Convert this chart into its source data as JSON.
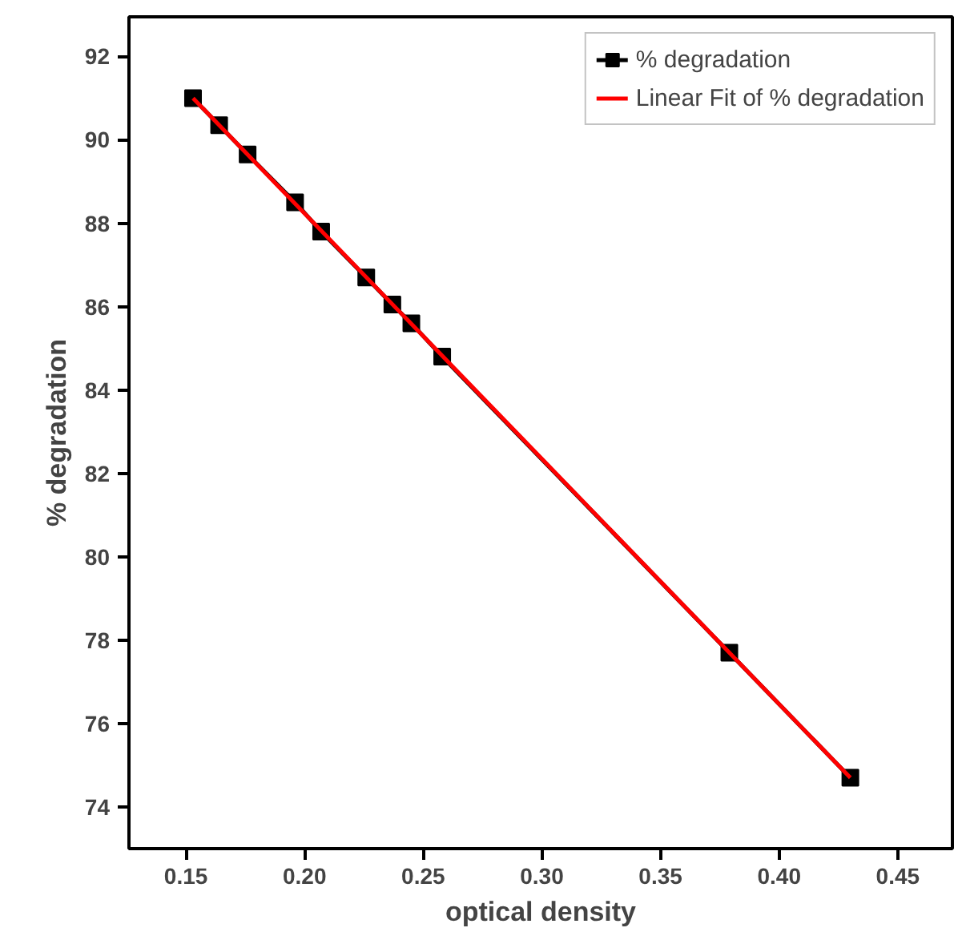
{
  "chart_data": {
    "type": "line",
    "xlabel": "optical density",
    "ylabel": "% degradation",
    "x": [
      0.153,
      0.164,
      0.176,
      0.196,
      0.207,
      0.226,
      0.237,
      0.245,
      0.258,
      0.379,
      0.43
    ],
    "series": [
      {
        "name": "% degradation",
        "color": "#000000",
        "marker": "square",
        "values": [
          91.0,
          90.35,
          89.65,
          88.5,
          87.8,
          86.7,
          86.05,
          85.6,
          84.8,
          77.7,
          74.7
        ]
      },
      {
        "name": "Linear Fit of % degradation",
        "color": "#ff0000",
        "marker": "none",
        "x": [
          0.153,
          0.43
        ],
        "values": [
          91.0,
          74.7
        ]
      }
    ],
    "xlim": [
      0.126,
      0.473
    ],
    "ylim": [
      73.0,
      92.95
    ],
    "xticks": [
      {
        "value": 0.15,
        "label": "0.15"
      },
      {
        "value": 0.2,
        "label": "0.20"
      },
      {
        "value": 0.25,
        "label": "0.25"
      },
      {
        "value": 0.3,
        "label": "0.30"
      },
      {
        "value": 0.35,
        "label": "0.35"
      },
      {
        "value": 0.4,
        "label": "0.40"
      },
      {
        "value": 0.45,
        "label": "0.45"
      }
    ],
    "yticks": [
      74,
      76,
      78,
      80,
      82,
      84,
      86,
      88,
      90,
      92
    ],
    "grid": false,
    "legend": "top right",
    "line_style": "solid"
  }
}
